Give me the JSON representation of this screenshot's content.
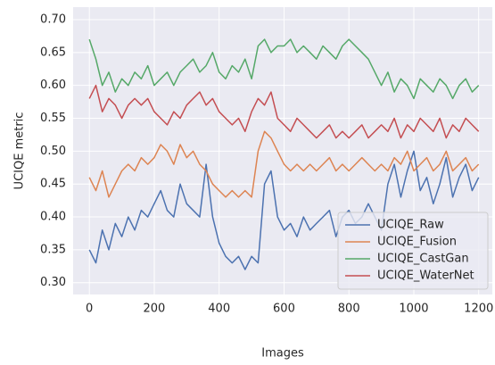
{
  "chart_data": {
    "type": "line",
    "xlabel": "Images",
    "ylabel": "UCIQE metric",
    "x": [
      0,
      20,
      40,
      60,
      80,
      100,
      120,
      140,
      160,
      180,
      200,
      220,
      240,
      260,
      280,
      300,
      320,
      340,
      360,
      380,
      400,
      420,
      440,
      460,
      480,
      500,
      520,
      540,
      560,
      580,
      600,
      620,
      640,
      660,
      680,
      700,
      720,
      740,
      760,
      780,
      800,
      820,
      840,
      860,
      880,
      900,
      920,
      940,
      960,
      980,
      1000,
      1020,
      1040,
      1060,
      1080,
      1100,
      1120,
      1140,
      1160,
      1180,
      1200
    ],
    "series": [
      {
        "name": "UCIQE_Raw",
        "color": "#4c72b0",
        "values": [
          0.35,
          0.33,
          0.38,
          0.35,
          0.39,
          0.37,
          0.4,
          0.38,
          0.41,
          0.4,
          0.42,
          0.44,
          0.41,
          0.4,
          0.45,
          0.42,
          0.41,
          0.4,
          0.48,
          0.4,
          0.36,
          0.34,
          0.33,
          0.34,
          0.32,
          0.34,
          0.33,
          0.45,
          0.47,
          0.4,
          0.38,
          0.39,
          0.37,
          0.4,
          0.38,
          0.39,
          0.4,
          0.41,
          0.37,
          0.4,
          0.41,
          0.39,
          0.4,
          0.42,
          0.4,
          0.38,
          0.45,
          0.48,
          0.43,
          0.47,
          0.5,
          0.44,
          0.46,
          0.42,
          0.45,
          0.49,
          0.43,
          0.46,
          0.48,
          0.44,
          0.46
        ]
      },
      {
        "name": "UCIQE_Fusion",
        "color": "#dd8452",
        "values": [
          0.46,
          0.44,
          0.47,
          0.43,
          0.45,
          0.47,
          0.48,
          0.47,
          0.49,
          0.48,
          0.49,
          0.51,
          0.5,
          0.48,
          0.51,
          0.49,
          0.5,
          0.48,
          0.47,
          0.45,
          0.44,
          0.43,
          0.44,
          0.43,
          0.44,
          0.43,
          0.5,
          0.53,
          0.52,
          0.5,
          0.48,
          0.47,
          0.48,
          0.47,
          0.48,
          0.47,
          0.48,
          0.49,
          0.47,
          0.48,
          0.47,
          0.48,
          0.49,
          0.48,
          0.47,
          0.48,
          0.47,
          0.49,
          0.48,
          0.5,
          0.47,
          0.48,
          0.49,
          0.47,
          0.48,
          0.5,
          0.47,
          0.48,
          0.49,
          0.47,
          0.48
        ]
      },
      {
        "name": "UCIQE_CastGan",
        "color": "#55a868",
        "values": [
          0.67,
          0.64,
          0.6,
          0.62,
          0.59,
          0.61,
          0.6,
          0.62,
          0.61,
          0.63,
          0.6,
          0.61,
          0.62,
          0.6,
          0.62,
          0.63,
          0.64,
          0.62,
          0.63,
          0.65,
          0.62,
          0.61,
          0.63,
          0.62,
          0.64,
          0.61,
          0.66,
          0.67,
          0.65,
          0.66,
          0.66,
          0.67,
          0.65,
          0.66,
          0.65,
          0.64,
          0.66,
          0.65,
          0.64,
          0.66,
          0.67,
          0.66,
          0.65,
          0.64,
          0.62,
          0.6,
          0.62,
          0.59,
          0.61,
          0.6,
          0.58,
          0.61,
          0.6,
          0.59,
          0.61,
          0.6,
          0.58,
          0.6,
          0.61,
          0.59,
          0.6
        ]
      },
      {
        "name": "UCIQE_WaterNet",
        "color": "#c44e52",
        "values": [
          0.58,
          0.6,
          0.56,
          0.58,
          0.57,
          0.55,
          0.57,
          0.58,
          0.57,
          0.58,
          0.56,
          0.55,
          0.54,
          0.56,
          0.55,
          0.57,
          0.58,
          0.59,
          0.57,
          0.58,
          0.56,
          0.55,
          0.54,
          0.55,
          0.53,
          0.56,
          0.58,
          0.57,
          0.59,
          0.55,
          0.54,
          0.53,
          0.55,
          0.54,
          0.53,
          0.52,
          0.53,
          0.54,
          0.52,
          0.53,
          0.52,
          0.53,
          0.54,
          0.52,
          0.53,
          0.54,
          0.53,
          0.55,
          0.52,
          0.54,
          0.53,
          0.55,
          0.54,
          0.53,
          0.55,
          0.52,
          0.54,
          0.53,
          0.55,
          0.54,
          0.53
        ]
      }
    ],
    "xlim": [
      -50,
      1242
    ],
    "ylim": [
      0.282,
      0.719
    ],
    "xticks": [
      0,
      200,
      400,
      600,
      800,
      1000,
      1200
    ],
    "yticks": [
      {
        "value": 0.3,
        "label": "0.30"
      },
      0.35,
      {
        "value": 0.4,
        "label": "0.40"
      },
      0.45,
      {
        "value": 0.5,
        "label": "0.50"
      },
      0.55,
      {
        "value": 0.6,
        "label": "0.60"
      },
      0.65,
      {
        "value": 0.7,
        "label": "0.70"
      }
    ],
    "grid": true,
    "legend": "lower-right",
    "background": "#eaeaf2"
  }
}
